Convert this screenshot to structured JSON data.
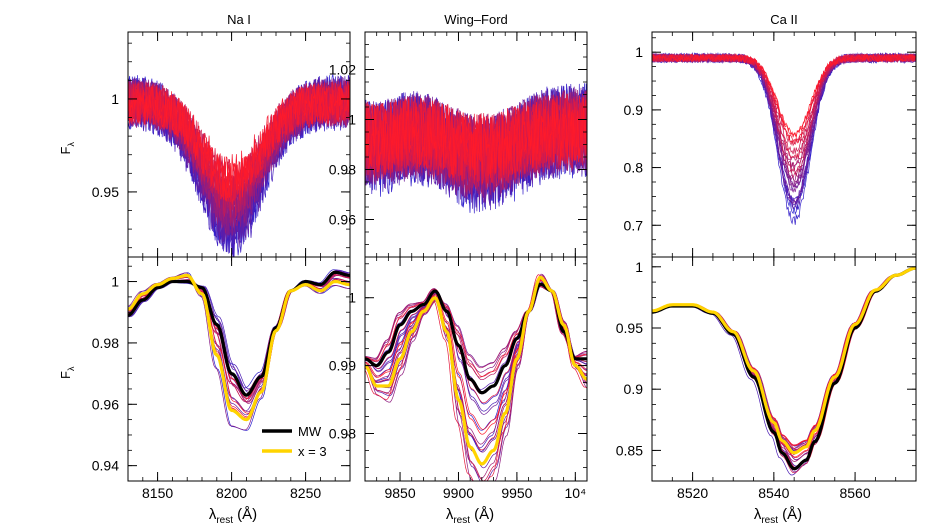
{
  "chart_data": {
    "type": "line",
    "panels": [
      {
        "id": "nai-top",
        "title": "Na I",
        "ylabel": "F_λ",
        "xlim": [
          8130,
          8280
        ],
        "ylim": [
          0.915,
          1.036
        ],
        "yticks_major": [
          {
            "v": 0.95,
            "label": "0.95"
          },
          {
            "v": 1.0,
            "label": "1"
          }
        ],
        "yticks_minor_step": 0.01,
        "xticks_major": [
          8150,
          8200,
          8250
        ],
        "xticks_minor_step": 10,
        "xticklabels": [],
        "series_kind": "noisy",
        "n_spectra": 26,
        "profile": {
          "centers": [
            8200
          ],
          "widths": [
            20
          ],
          "depths": [
            0.058
          ],
          "baseline": 0.998,
          "noise": 0.011
        }
      },
      {
        "id": "wf-top",
        "title": "Wing–Ford",
        "ylabel": "",
        "xlim": [
          9820,
          10010
        ],
        "ylim": [
          0.945,
          1.035
        ],
        "yticks_major": [
          {
            "v": 0.96,
            "label": "0.96"
          },
          {
            "v": 0.98,
            "label": "0.98"
          },
          {
            "v": 1.0,
            "label": "1"
          },
          {
            "v": 1.02,
            "label": "1.02"
          }
        ],
        "yticks_minor_step": 0.005,
        "xticks_major": [
          9850,
          9900,
          9950,
          10000
        ],
        "xticks_minor_step": 10,
        "xticklabels": [],
        "series_kind": "noisy",
        "n_spectra": 26,
        "profile": {
          "centers": [
            9830,
            9920
          ],
          "widths": [
            18,
            28
          ],
          "depths": [
            0.006,
            0.012
          ],
          "baseline": 0.996,
          "noise": 0.014
        }
      },
      {
        "id": "caii-top",
        "title": "Ca II",
        "ylabel": "",
        "xlim": [
          8510,
          8575
        ],
        "ylim": [
          0.645,
          1.035
        ],
        "yticks_major": [
          {
            "v": 0.7,
            "label": "0.7"
          },
          {
            "v": 0.8,
            "label": "0.8"
          },
          {
            "v": 0.9,
            "label": "0.9"
          },
          {
            "v": 1.0,
            "label": "1"
          }
        ],
        "yticks_minor_step": 0.025,
        "xticks_major": [
          8520,
          8540,
          8560
        ],
        "xticks_minor_step": 5,
        "xticklabels": [],
        "series_kind": "noisy",
        "n_spectra": 26,
        "profile": {
          "centers": [
            8545
          ],
          "widths": [
            4
          ],
          "depths": [
            0.22
          ],
          "baseline": 0.99,
          "noise": 0.006
        }
      },
      {
        "id": "nai-bottom",
        "title": "",
        "ylabel": "F_λ",
        "xlim": [
          8130,
          8280
        ],
        "ylim": [
          0.935,
          1.008
        ],
        "yticks_major": [
          {
            "v": 0.94,
            "label": "0.94"
          },
          {
            "v": 0.96,
            "label": "0.96"
          },
          {
            "v": 0.98,
            "label": "0.98"
          },
          {
            "v": 1.0,
            "label": "1"
          }
        ],
        "yticks_minor_step": 0.005,
        "xticks_major": [
          8150,
          8200,
          8250
        ],
        "xticks_minor_step": 10,
        "xticklabels": [
          "8150",
          "8200",
          "8250"
        ],
        "xlabel": "λ",
        "xlabel_sub": "rest",
        "xlabel_unit": " (Å)",
        "series_kind": "smooth",
        "n_spectra": 26,
        "highlight": [
          {
            "name": "MW",
            "color": "#000000",
            "x": [
              8130,
              8140,
              8150,
              8160,
              8170,
              8180,
              8190,
              8200,
              8210,
              8220,
              8230,
              8240,
              8250,
              8260,
              8270,
              8280
            ],
            "y": [
              0.989,
              0.994,
              0.998,
              1.0,
              1.0,
              0.998,
              0.986,
              0.97,
              0.963,
              0.969,
              0.985,
              0.997,
              1.0,
              0.999,
              1.003,
              1.002
            ]
          },
          {
            "name": "x = 3",
            "color": "#ffd400",
            "x": [
              8130,
              8140,
              8150,
              8160,
              8170,
              8180,
              8190,
              8200,
              8210,
              8220,
              8230,
              8240,
              8250,
              8260,
              8270,
              8280
            ],
            "y": [
              0.991,
              0.996,
              0.999,
              1.001,
              1.002,
              0.996,
              0.976,
              0.958,
              0.955,
              0.964,
              0.984,
              0.997,
              0.999,
              0.997,
              1.0,
              0.999
            ]
          }
        ],
        "legend": {
          "position": "bottom-right",
          "entries": [
            {
              "label": "MW",
              "color": "#000000"
            },
            {
              "label": "x = 3",
              "color": "#ffd400"
            }
          ]
        }
      },
      {
        "id": "wf-bottom",
        "title": "",
        "ylabel": "",
        "xlim": [
          9820,
          10010
        ],
        "ylim": [
          0.973,
          1.006
        ],
        "yticks_major": [
          {
            "v": 0.98,
            "label": "0.98"
          },
          {
            "v": 0.99,
            "label": "0.99"
          },
          {
            "v": 1.0,
            "label": "1"
          }
        ],
        "yticks_minor_step": 0.0025,
        "xticks_major": [
          9850,
          9900,
          9950,
          10000
        ],
        "xticks_minor_step": 10,
        "xticklabels": [
          "9850",
          "9900",
          "9950",
          "10⁴"
        ],
        "xlabel": "λ",
        "xlabel_sub": "rest",
        "xlabel_unit": " (Å)",
        "series_kind": "smooth",
        "n_spectra": 26,
        "highlight": [
          {
            "name": "MW",
            "color": "#000000",
            "x": [
              9820,
              9830,
              9840,
              9850,
              9860,
              9870,
              9880,
              9890,
              9900,
              9910,
              9920,
              9930,
              9940,
              9950,
              9960,
              9970,
              9980,
              9990,
              10000,
              10010
            ],
            "y": [
              0.991,
              0.99,
              0.992,
              0.996,
              0.998,
              0.999,
              1.001,
              0.998,
              0.993,
              0.988,
              0.986,
              0.987,
              0.99,
              0.994,
              0.998,
              1.002,
              1.001,
              0.995,
              0.991,
              0.991
            ]
          },
          {
            "name": "x = 3",
            "color": "#ffd400",
            "x": [
              9820,
              9830,
              9840,
              9850,
              9860,
              9870,
              9880,
              9890,
              9900,
              9910,
              9920,
              9930,
              9940,
              9950,
              9960,
              9970,
              9980,
              9990,
              10000,
              10010
            ],
            "y": [
              0.99,
              0.987,
              0.987,
              0.991,
              0.995,
              0.998,
              1.0,
              0.995,
              0.985,
              0.978,
              0.9755,
              0.9775,
              0.983,
              0.991,
              0.998,
              1.003,
              1.001,
              0.996,
              0.99,
              0.988
            ]
          }
        ]
      },
      {
        "id": "caii-bottom",
        "title": "",
        "ylabel": "",
        "xlim": [
          8510,
          8575
        ],
        "ylim": [
          0.825,
          1.008
        ],
        "yticks_major": [
          {
            "v": 0.85,
            "label": "0.85"
          },
          {
            "v": 0.9,
            "label": "0.9"
          },
          {
            "v": 0.95,
            "label": "0.95"
          },
          {
            "v": 1.0,
            "label": "1"
          }
        ],
        "yticks_minor_step": 0.0125,
        "xticks_major": [
          8520,
          8540,
          8560
        ],
        "xticks_minor_step": 5,
        "xticklabels": [
          "8520",
          "8540",
          "8560"
        ],
        "xlabel": "λ",
        "xlabel_sub": "rest",
        "xlabel_unit": " (Å)",
        "series_kind": "smooth",
        "n_spectra": 26,
        "highlight": [
          {
            "name": "MW",
            "color": "#000000",
            "x": [
              8510,
              8515,
              8520,
              8525,
              8530,
              8535,
              8540,
              8542,
              8545,
              8548,
              8550,
              8555,
              8560,
              8565,
              8570,
              8575
            ],
            "y": [
              0.963,
              0.968,
              0.968,
              0.962,
              0.945,
              0.91,
              0.865,
              0.848,
              0.835,
              0.842,
              0.857,
              0.905,
              0.95,
              0.98,
              0.993,
              0.999
            ]
          },
          {
            "name": "x = 3",
            "color": "#ffd400",
            "x": [
              8510,
              8515,
              8520,
              8525,
              8530,
              8535,
              8540,
              8542,
              8545,
              8548,
              8550,
              8555,
              8560,
              8565,
              8570,
              8575
            ],
            "y": [
              0.964,
              0.969,
              0.969,
              0.963,
              0.947,
              0.915,
              0.873,
              0.858,
              0.848,
              0.853,
              0.866,
              0.91,
              0.953,
              0.981,
              0.993,
              0.999
            ]
          }
        ]
      }
    ],
    "series_color_range": [
      "#2a1fd0",
      "#ff1a2a"
    ]
  }
}
